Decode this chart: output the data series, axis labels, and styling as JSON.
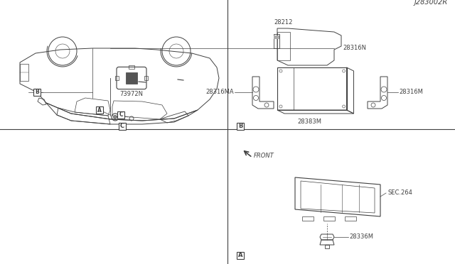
{
  "diagram_id": "J283002R",
  "bg_color": "#ffffff",
  "line_color": "#404040",
  "fig_width": 6.4,
  "fig_height": 3.72,
  "dpi": 100,
  "labels": {
    "28336M": "28336M",
    "SEC264": "SEC.264",
    "FRONT": "FRONT",
    "73972N": "73972N",
    "28383M": "28383M",
    "28316MA": "28316MA",
    "28316M": "28316M",
    "28316N": "28316N",
    "28212": "28212"
  }
}
